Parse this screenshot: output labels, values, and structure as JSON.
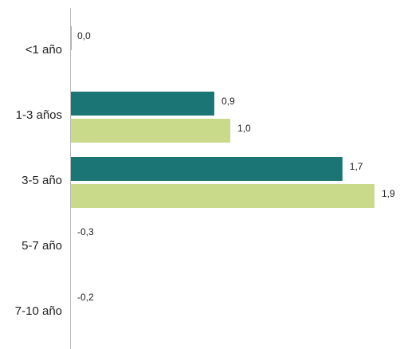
{
  "chart_data": {
    "type": "bar",
    "orientation": "horizontal",
    "categories": [
      "<1 año",
      "1-3 años",
      "3-5 año",
      "5-7 año",
      "7-10 año"
    ],
    "series": [
      {
        "color": "#1b7575",
        "values": [
          0.0,
          0.9,
          1.7,
          -0.3,
          -0.2
        ],
        "value_labels": [
          "0,0",
          "0,9",
          "1,7",
          "-0,3",
          "-0,2"
        ]
      },
      {
        "color": "#c9da8b",
        "values": [
          null,
          1.0,
          1.9,
          null,
          null
        ],
        "value_labels": [
          null,
          "1,0",
          "1,9",
          null,
          null
        ]
      }
    ],
    "xlim": [
      0,
      1.9
    ]
  }
}
